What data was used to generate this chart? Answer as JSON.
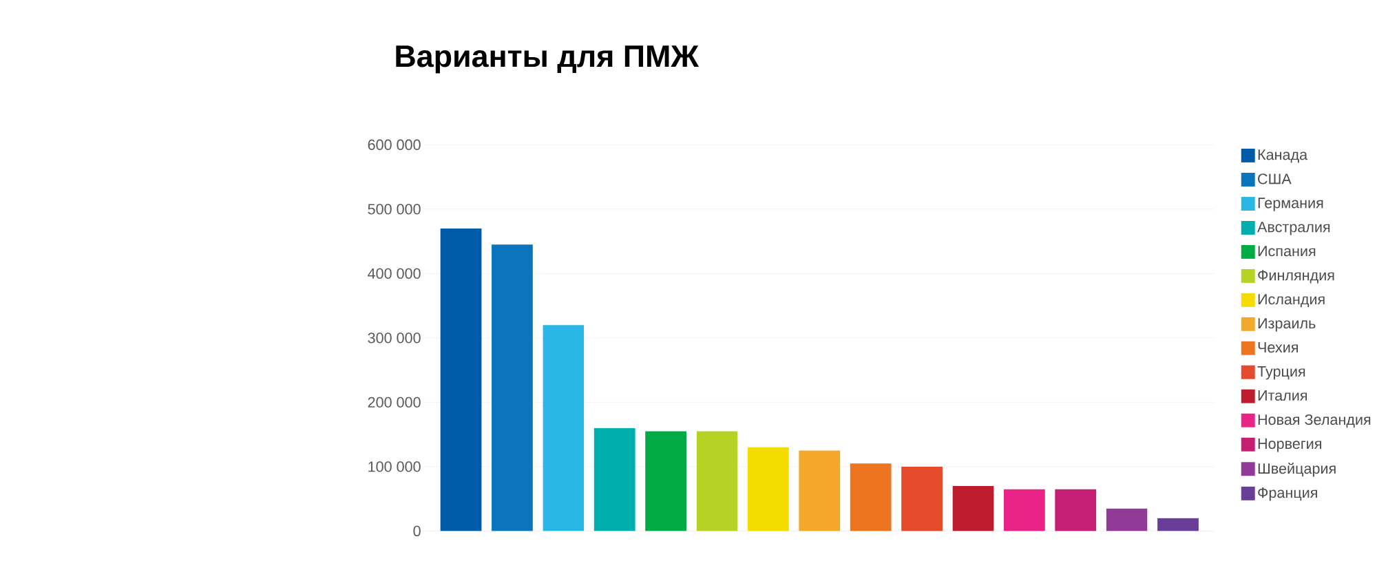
{
  "chart_data": {
    "type": "bar",
    "title": "Варианты для ПМЖ",
    "categories": [
      null,
      null,
      null,
      null,
      null,
      null,
      null,
      null,
      null,
      null,
      null,
      null,
      null,
      null,
      null
    ],
    "series": [
      {
        "name": "Канада",
        "color": "#005ba9",
        "values": [
          470000,
          null,
          null,
          null,
          null,
          null,
          null,
          null,
          null,
          null,
          null,
          null,
          null,
          null,
          null
        ]
      },
      {
        "name": "США",
        "color": "#0a75bc",
        "values": [
          null,
          445000,
          null,
          null,
          null,
          null,
          null,
          null,
          null,
          null,
          null,
          null,
          null,
          null,
          null
        ]
      },
      {
        "name": "Германия",
        "color": "#2ab7e6",
        "values": [
          null,
          null,
          320000,
          null,
          null,
          null,
          null,
          null,
          null,
          null,
          null,
          null,
          null,
          null,
          null
        ]
      },
      {
        "name": "Австралия",
        "color": "#00aead",
        "values": [
          null,
          null,
          null,
          160000,
          null,
          null,
          null,
          null,
          null,
          null,
          null,
          null,
          null,
          null,
          null
        ]
      },
      {
        "name": "Испания",
        "color": "#00aa45",
        "values": [
          null,
          null,
          null,
          null,
          155000,
          null,
          null,
          null,
          null,
          null,
          null,
          null,
          null,
          null,
          null
        ]
      },
      {
        "name": "Финляндия",
        "color": "#b6d325",
        "values": [
          null,
          null,
          null,
          null,
          null,
          155000,
          null,
          null,
          null,
          null,
          null,
          null,
          null,
          null,
          null
        ]
      },
      {
        "name": "Исландия",
        "color": "#f4dc00",
        "values": [
          null,
          null,
          null,
          null,
          null,
          null,
          130000,
          null,
          null,
          null,
          null,
          null,
          null,
          null,
          null
        ]
      },
      {
        "name": "Израиль",
        "color": "#f3a82b",
        "values": [
          null,
          null,
          null,
          null,
          null,
          null,
          null,
          125000,
          null,
          null,
          null,
          null,
          null,
          null,
          null
        ]
      },
      {
        "name": "Чехия",
        "color": "#ee751f",
        "values": [
          null,
          null,
          null,
          null,
          null,
          null,
          null,
          null,
          105000,
          null,
          null,
          null,
          null,
          null,
          null
        ]
      },
      {
        "name": "Турция",
        "color": "#e44a2b",
        "values": [
          null,
          null,
          null,
          null,
          null,
          null,
          null,
          null,
          null,
          100000,
          null,
          null,
          null,
          null,
          null
        ]
      },
      {
        "name": "Италия",
        "color": "#bc1c2e",
        "values": [
          null,
          null,
          null,
          null,
          null,
          null,
          null,
          null,
          null,
          null,
          70000,
          null,
          null,
          null,
          null
        ]
      },
      {
        "name": "Новая Зеландия",
        "color": "#ea2487",
        "values": [
          null,
          null,
          null,
          null,
          null,
          null,
          null,
          null,
          null,
          null,
          null,
          65000,
          null,
          null,
          null
        ]
      },
      {
        "name": "Норвегия",
        "color": "#c41f73",
        "values": [
          null,
          null,
          null,
          null,
          null,
          null,
          null,
          null,
          null,
          null,
          null,
          null,
          65000,
          null,
          null
        ]
      },
      {
        "name": "Швейцария",
        "color": "#923a98",
        "values": [
          null,
          null,
          null,
          null,
          null,
          null,
          null,
          null,
          null,
          null,
          null,
          null,
          null,
          35000,
          null
        ]
      },
      {
        "name": "Франция",
        "color": "#6a3e98",
        "values": [
          null,
          null,
          null,
          null,
          null,
          null,
          null,
          null,
          null,
          null,
          null,
          null,
          null,
          null,
          20000
        ]
      }
    ],
    "ylim": [
      0,
      600000
    ],
    "yticks": [
      0,
      {
        "value": 100000,
        "label": "100 000"
      },
      {
        "value": 200000,
        "label": "200 000"
      },
      {
        "value": 300000,
        "label": "300 000"
      },
      {
        "value": 400000,
        "label": "400 000"
      },
      {
        "value": 500000,
        "label": "500 000"
      },
      {
        "value": 600000,
        "label": "600 000"
      }
    ],
    "grid": "y",
    "legend": "right"
  }
}
